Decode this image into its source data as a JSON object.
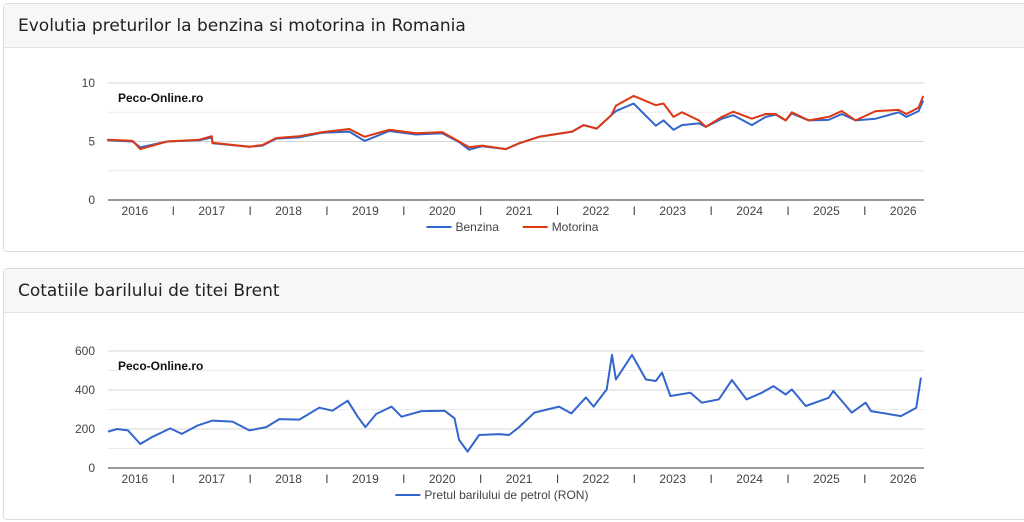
{
  "panels": [
    {
      "title": "Evolutia preturilor la benzina si motorina in Romania"
    },
    {
      "title": "Cotatiile barilului de titei Brent"
    }
  ],
  "chart_data": [
    {
      "type": "line",
      "title": "Evolutia preturilor la benzina si motorina in Romania",
      "watermark": "Peco-Online.ro",
      "xlabel": "",
      "ylabel": "",
      "xlim": [
        2015.65,
        2026.27
      ],
      "ylim": [
        0,
        10
      ],
      "yticks": [
        0,
        5,
        10
      ],
      "ygrid": [
        0,
        2.5,
        5,
        7.5,
        10
      ],
      "xtick_labels": [
        "2016",
        "2017",
        "2018",
        "2019",
        "2020",
        "2021",
        "2022",
        "2023",
        "2024",
        "2025",
        "2026"
      ],
      "xtick_separator": "I",
      "legend": "bottom",
      "x": [
        2015.64,
        2015.97,
        2016.07,
        2016.42,
        2016.84,
        2017.0,
        2017.01,
        2017.49,
        2017.66,
        2017.84,
        2018.14,
        2018.44,
        2018.79,
        2018.99,
        2019.31,
        2019.66,
        2020.0,
        2020.22,
        2020.35,
        2020.52,
        2020.83,
        2021.0,
        2021.26,
        2021.69,
        2021.84,
        2022.01,
        2022.2,
        2022.26,
        2022.49,
        2022.78,
        2022.88,
        2023.01,
        2023.12,
        2023.34,
        2023.43,
        2023.64,
        2023.79,
        2024.03,
        2024.21,
        2024.34,
        2024.47,
        2024.55,
        2024.77,
        2025.03,
        2025.2,
        2025.38,
        2025.64,
        2025.94,
        2026.04,
        2026.2,
        2026.26
      ],
      "series": [
        {
          "name": "Benzina",
          "color": "#3366cc",
          "values": [
            5.1,
            5.0,
            4.5,
            5.0,
            5.1,
            5.35,
            4.85,
            4.55,
            4.65,
            5.25,
            5.35,
            5.75,
            5.85,
            5.05,
            5.9,
            5.6,
            5.7,
            4.95,
            4.3,
            4.6,
            4.35,
            4.85,
            5.4,
            5.85,
            6.4,
            6.1,
            7.25,
            7.6,
            8.25,
            6.35,
            6.8,
            6.0,
            6.4,
            6.55,
            6.25,
            6.95,
            7.25,
            6.4,
            7.1,
            7.3,
            6.8,
            7.4,
            6.8,
            6.85,
            7.35,
            6.8,
            6.95,
            7.5,
            7.1,
            7.6,
            8.5
          ]
        },
        {
          "name": "Motorina",
          "color": "#dc3912",
          "values": [
            5.15,
            5.05,
            4.35,
            5.0,
            5.15,
            5.45,
            4.9,
            4.55,
            4.7,
            5.3,
            5.45,
            5.8,
            6.07,
            5.4,
            6.0,
            5.7,
            5.8,
            5.0,
            4.5,
            4.65,
            4.35,
            4.85,
            5.4,
            5.85,
            6.4,
            6.1,
            7.25,
            8.05,
            8.9,
            8.1,
            8.25,
            7.1,
            7.5,
            6.8,
            6.25,
            7.1,
            7.55,
            6.95,
            7.35,
            7.35,
            6.8,
            7.5,
            6.8,
            7.1,
            7.6,
            6.8,
            7.6,
            7.7,
            7.35,
            7.9,
            8.9
          ]
        }
      ]
    },
    {
      "type": "line",
      "title": "Cotatiile barilului de titei Brent",
      "watermark": "Peco-Online.ro",
      "xlabel": "",
      "ylabel": "",
      "xlim": [
        2015.65,
        2026.27
      ],
      "ylim": [
        0,
        600
      ],
      "yticks": [
        0,
        200,
        400,
        600
      ],
      "ygrid": [
        0,
        100,
        200,
        300,
        400,
        500,
        600
      ],
      "xtick_labels": [
        "2016",
        "2017",
        "2018",
        "2019",
        "2020",
        "2021",
        "2022",
        "2023",
        "2024",
        "2025",
        "2026"
      ],
      "xtick_separator": "I",
      "legend": "bottom",
      "x": [
        2015.65,
        2015.77,
        2015.91,
        2016.07,
        2016.23,
        2016.46,
        2016.61,
        2016.81,
        2017.01,
        2017.27,
        2017.49,
        2017.71,
        2017.88,
        2018.14,
        2018.4,
        2018.57,
        2018.77,
        2018.9,
        2019.0,
        2019.14,
        2019.34,
        2019.47,
        2019.73,
        2020.03,
        2020.16,
        2020.22,
        2020.33,
        2020.48,
        2020.74,
        2020.87,
        2021.0,
        2021.2,
        2021.52,
        2021.68,
        2021.87,
        2021.97,
        2022.14,
        2022.21,
        2022.26,
        2022.47,
        2022.65,
        2022.78,
        2022.86,
        2022.97,
        2023.23,
        2023.38,
        2023.6,
        2023.77,
        2023.96,
        2024.16,
        2024.31,
        2024.47,
        2024.55,
        2024.73,
        2025.03,
        2025.09,
        2025.33,
        2025.51,
        2025.58,
        2025.97,
        2026.17,
        2026.23
      ],
      "series": [
        {
          "name": "Pretul barilului de petrol (RON)",
          "color": "#3366cc",
          "values": [
            186,
            200,
            193,
            123,
            160,
            203,
            175,
            217,
            243,
            238,
            193,
            210,
            251,
            248,
            309,
            294,
            345,
            263,
            210,
            277,
            315,
            263,
            292,
            294,
            255,
            144,
            84,
            169,
            174,
            169,
            210,
            284,
            315,
            280,
            362,
            315,
            403,
            580,
            454,
            580,
            454,
            446,
            489,
            369,
            386,
            335,
            352,
            451,
            352,
            386,
            420,
            377,
            403,
            318,
            360,
            395,
            284,
            335,
            292,
            266,
            309,
            463
          ]
        }
      ]
    }
  ]
}
